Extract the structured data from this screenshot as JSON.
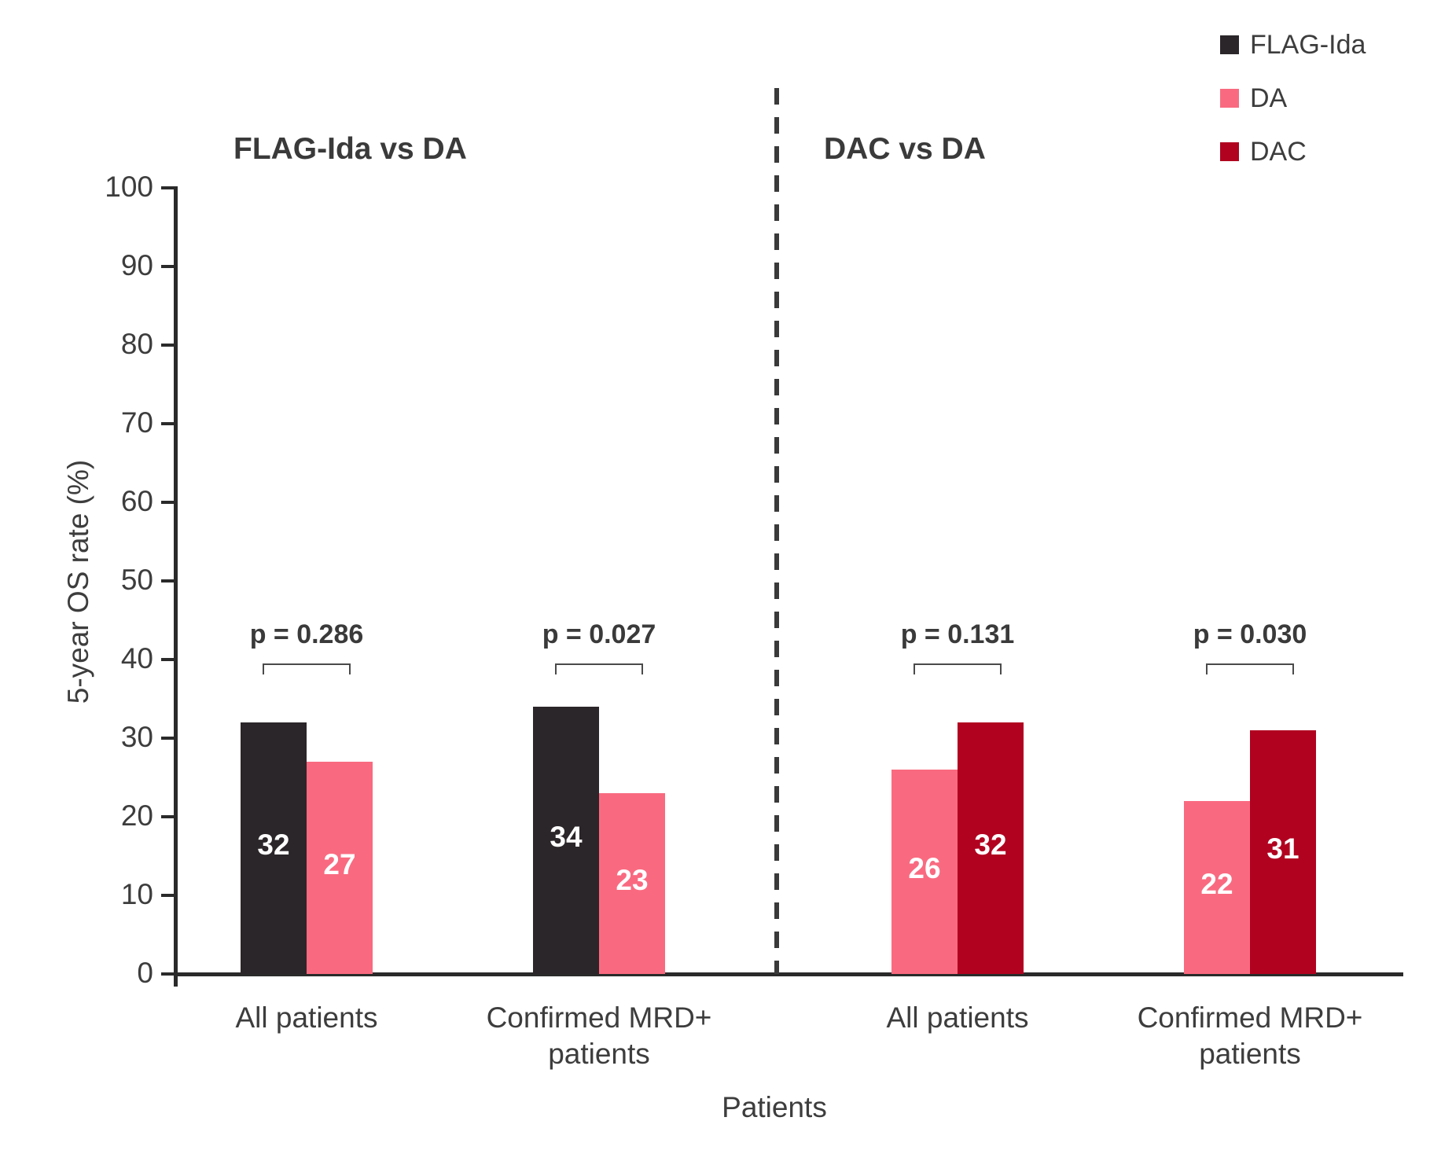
{
  "chart_data": {
    "type": "bar",
    "title": "",
    "ylabel": "5-year OS rate (%)",
    "xlabel": "Patients",
    "ylim": [
      0,
      100
    ],
    "yticks": [
      0,
      10,
      20,
      30,
      40,
      50,
      60,
      70,
      80,
      90,
      100
    ],
    "grid": false,
    "legend_position": "top-right",
    "legend": [
      "FLAG-Ida",
      "DA",
      "DAC"
    ],
    "series_colors": {
      "FLAG-Ida": "#2b2629",
      "DA": "#f96a80",
      "DAC": "#b10220"
    },
    "axis_color": "#2a2a2a",
    "text_color": "#3d3d3d",
    "panels": [
      {
        "title": "FLAG-Ida vs DA",
        "groups": [
          {
            "category": "All patients",
            "p_label": "p = 0.286",
            "bars": [
              {
                "series": "FLAG-Ida",
                "value": 32
              },
              {
                "series": "DA",
                "value": 27
              }
            ]
          },
          {
            "category": "Confirmed MRD+ patients",
            "p_label": "p = 0.027",
            "bars": [
              {
                "series": "FLAG-Ida",
                "value": 34
              },
              {
                "series": "DA",
                "value": 23
              }
            ]
          }
        ]
      },
      {
        "title": "DAC vs DA",
        "groups": [
          {
            "category": "All patients",
            "p_label": "p = 0.131",
            "bars": [
              {
                "series": "DA",
                "value": 26
              },
              {
                "series": "DAC",
                "value": 32
              }
            ]
          },
          {
            "category": "Confirmed MRD+ patients",
            "p_label": "p = 0.030",
            "bars": [
              {
                "series": "DA",
                "value": 22
              },
              {
                "series": "DAC",
                "value": 31
              }
            ]
          }
        ]
      }
    ]
  }
}
